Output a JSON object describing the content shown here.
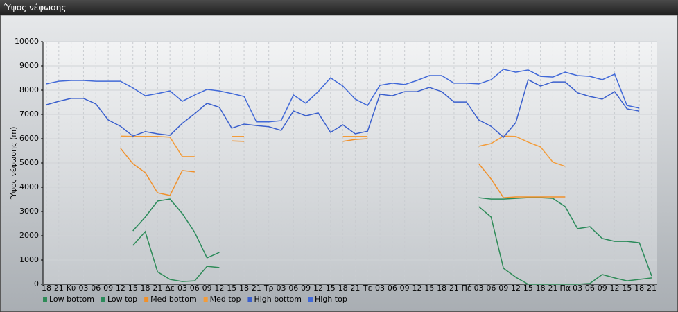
{
  "chart_data": {
    "type": "line",
    "title": "Ύψος νέφωσης",
    "y_label": "Ύψος νέφωσης (m)",
    "categories": [
      "18",
      "21",
      "Κυ",
      "03",
      "06",
      "09",
      "12",
      "15",
      "18",
      "21",
      "Δε",
      "03",
      "06",
      "09",
      "12",
      "15",
      "18",
      "21",
      "Τρ",
      "03",
      "06",
      "09",
      "12",
      "15",
      "18",
      "21",
      "Τε",
      "03",
      "06",
      "09",
      "12",
      "15",
      "18",
      "21",
      "Πέ",
      "03",
      "06",
      "09",
      "12",
      "15",
      "18",
      "21",
      "Πα",
      "03",
      "06",
      "09",
      "12",
      "15",
      "18",
      "21"
    ],
    "ylim": [
      0,
      10000
    ],
    "yticks": [
      0,
      1000,
      2000,
      3000,
      4000,
      5000,
      6000,
      7000,
      8000,
      9000,
      10000
    ],
    "grid": true,
    "series": [
      {
        "name": "Low bottom",
        "color": "#2e8b57",
        "values": [
          null,
          null,
          null,
          null,
          null,
          null,
          null,
          1600,
          2170,
          510,
          200,
          110,
          140,
          740,
          690,
          null,
          null,
          null,
          null,
          null,
          null,
          null,
          null,
          null,
          null,
          null,
          null,
          null,
          null,
          null,
          null,
          null,
          null,
          null,
          null,
          3200,
          2770,
          660,
          290,
          0,
          0,
          0,
          0,
          0,
          30,
          400,
          260,
          140,
          200,
          260
        ]
      },
      {
        "name": "Low top",
        "color": "#2a8a5a",
        "values": [
          null,
          null,
          null,
          null,
          null,
          null,
          null,
          2200,
          2770,
          3430,
          3510,
          2910,
          2140,
          1090,
          1310,
          null,
          null,
          null,
          null,
          null,
          null,
          null,
          null,
          null,
          null,
          null,
          null,
          null,
          null,
          null,
          null,
          null,
          null,
          null,
          null,
          3570,
          3510,
          3510,
          3540,
          3570,
          3570,
          3540,
          3200,
          2290,
          2370,
          1890,
          1770,
          1770,
          1710,
          340
        ]
      },
      {
        "name": "Med bottom",
        "color": "#f0902a",
        "values": [
          null,
          null,
          null,
          null,
          null,
          null,
          5600,
          4970,
          4600,
          3770,
          3660,
          4690,
          4630,
          null,
          null,
          5910,
          5890,
          null,
          null,
          null,
          null,
          null,
          null,
          null,
          5890,
          5970,
          6000,
          null,
          null,
          null,
          null,
          null,
          null,
          null,
          null,
          4970,
          4340,
          3570,
          3600,
          3600,
          3600,
          3600,
          3600,
          null,
          null,
          null,
          null,
          null,
          null,
          null
        ]
      },
      {
        "name": "Med top",
        "color": "#f39c3a",
        "values": [
          null,
          null,
          null,
          null,
          null,
          null,
          6110,
          6090,
          6090,
          6090,
          6060,
          5260,
          5260,
          null,
          null,
          6090,
          6090,
          null,
          null,
          null,
          null,
          null,
          null,
          null,
          6090,
          6090,
          6090,
          null,
          null,
          null,
          null,
          null,
          null,
          null,
          null,
          5690,
          5800,
          6110,
          6090,
          5860,
          5660,
          5030,
          4860,
          null,
          null,
          null,
          null,
          null,
          null,
          null
        ]
      },
      {
        "name": "High bottom",
        "color": "#3a5fcd",
        "values": [
          7400,
          7540,
          7660,
          7660,
          7430,
          6770,
          6510,
          6110,
          6290,
          6200,
          6140,
          6630,
          7030,
          7460,
          7290,
          6430,
          6600,
          6540,
          6490,
          6340,
          7140,
          6940,
          7060,
          6260,
          6570,
          6200,
          6310,
          7830,
          7770,
          7940,
          7940,
          8110,
          7940,
          7510,
          7510,
          6770,
          6510,
          6060,
          6660,
          8430,
          8170,
          8340,
          8340,
          7890,
          7740,
          7630,
          7940,
          7230,
          7140,
          null
        ]
      },
      {
        "name": "High top",
        "color": "#4169d8",
        "values": [
          8260,
          8370,
          8400,
          8400,
          8370,
          8370,
          8370,
          8090,
          7770,
          7860,
          7970,
          7540,
          7800,
          8030,
          7970,
          7860,
          7740,
          6690,
          6690,
          6740,
          7800,
          7460,
          7940,
          8510,
          8170,
          7630,
          7370,
          8200,
          8290,
          8230,
          8400,
          8600,
          8600,
          8290,
          8290,
          8260,
          8430,
          8860,
          8740,
          8830,
          8570,
          8540,
          8740,
          8600,
          8570,
          8430,
          8660,
          7370,
          7260,
          null
        ]
      }
    ]
  }
}
